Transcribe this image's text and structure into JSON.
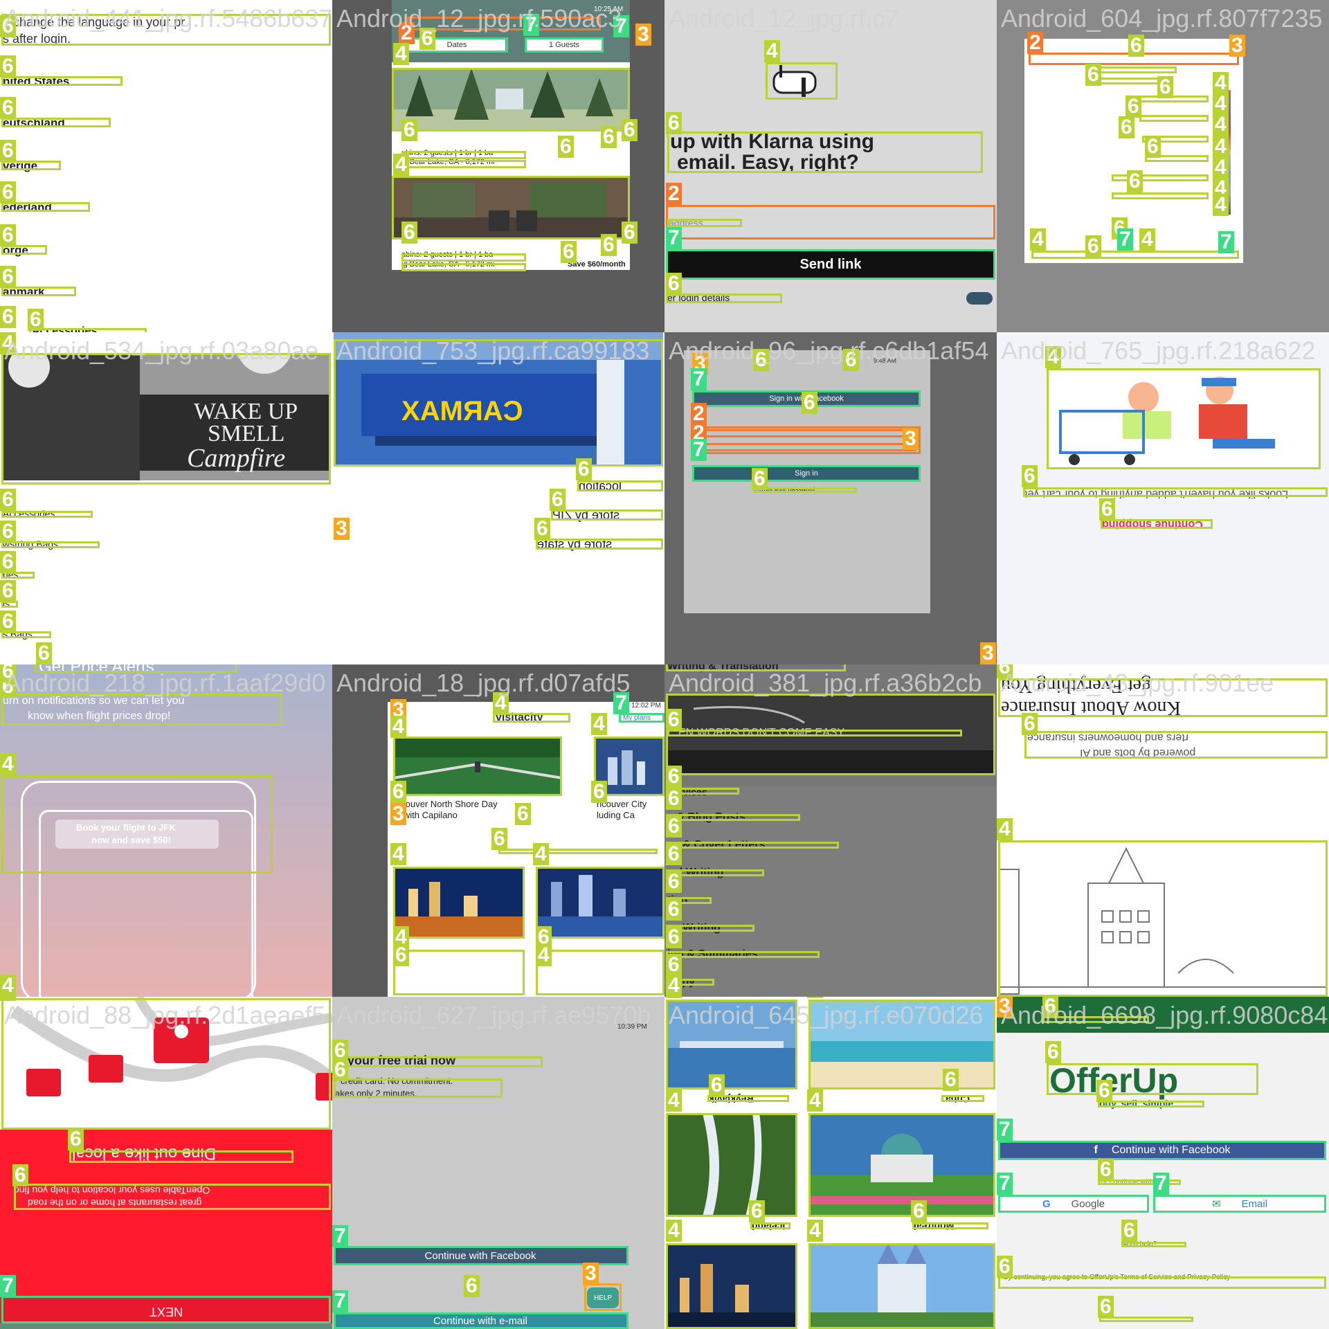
{
  "tiles": [
    {
      "title": "Android_441_jpg.rf.5486b6375",
      "header_text": "n change the language in your pr",
      "sub_text": "s after login.",
      "countries": [
        "nited States",
        "eutschland",
        "verige",
        "ederland",
        "orge",
        "anmark"
      ],
      "footer_item": "Accessories",
      "numbers": [
        "6",
        "6",
        "6",
        "6",
        "6",
        "6",
        "6",
        "6",
        "6",
        "4"
      ]
    },
    {
      "title": "Android_12_jpg.rf.590ac3",
      "status_time": "10:25 AM",
      "dates_label": "Dates",
      "guests_label": "1 Guests",
      "listing1_line1": "abins: 2 guests | 1 br | 1 ba",
      "listing1_line2": "ig Bear Lake, CA - 6,172 mi",
      "listing2_line1": "abins: 2 guests | 1 br | 1 ba",
      "listing2_line2": "ig Bear Lake, CA - 6,172 mi",
      "price_label": "Save $60/month",
      "numbers": [
        "2",
        "6",
        "7",
        "7",
        "3",
        "4",
        "6",
        "6",
        "6",
        "6",
        "4",
        "6",
        "6",
        "6",
        "6"
      ]
    },
    {
      "title": "Android_12_jpg.rf.c7",
      "heading_line1": "up with Klarna using",
      "heading_line2": "email. Easy, right?",
      "field_label": "address",
      "send_button": "Send link",
      "footer_text": "er login details",
      "numbers": [
        "4",
        "6",
        "2",
        "7",
        "6"
      ]
    },
    {
      "title": "Android_604_jpg.rf.807f7235",
      "numbers": [
        "2",
        "6",
        "3",
        "6",
        "6",
        "4",
        "4",
        "6",
        "4",
        "6",
        "4",
        "6",
        "4",
        "4",
        "6",
        "4",
        "6",
        "6",
        "4",
        "4",
        "7",
        "7"
      ]
    },
    {
      "title": "Android_534_jpg.rf.03a80ae",
      "bag_text_line1": "WAKE UP",
      "bag_text_line2": "SMELL",
      "bag_text_line3": "Campfire",
      "list_items": [
        "Accessories",
        "wstring Bags",
        "ries",
        "ls",
        "s Bags"
      ],
      "numbers": [
        "4",
        "6",
        "6",
        "6",
        "6",
        "6",
        "6"
      ]
    },
    {
      "title": "Android_753_jpg.rf.ca99183",
      "sign_text": "CARMAX",
      "links": [
        "location",
        "store by ZIP",
        "store by state"
      ],
      "numbers": [
        "4",
        "6",
        "6",
        "6",
        "3"
      ]
    },
    {
      "title": "Android_96_jpg.rf.c6db1af54",
      "status_time": "9:48 AM",
      "facebook_button": "Sign in with Facebook",
      "sign_in_button": "Sign in",
      "forgot_text": "Forgot your password",
      "numbers": [
        "3",
        "6",
        "6",
        "7",
        "6",
        "2",
        "2",
        "3",
        "7",
        "6",
        "3"
      ]
    },
    {
      "title": "Android_765_jpg.rf.218a622",
      "message_text": "Looks like you haven't added anything to your cart yet",
      "continue_text": "Continue shopping",
      "numbers": [
        "4",
        "6",
        "6"
      ]
    },
    {
      "title": "Android_218_jpg.rf.1aaf29d0",
      "top_label": "Get Price Alerts",
      "notif_line1": "urn on notifications so we can let you",
      "notif_line2": "know when flight prices drop!",
      "phone_text_line1": "Book your flight to JFK",
      "phone_text_line2": "now and save $50!",
      "numbers": [
        "6",
        "6",
        "4",
        "4"
      ]
    },
    {
      "title": "Android_18_jpg.rf.d07afd5",
      "status_time": "12:02 PM",
      "brand": "visitacity",
      "my_plans": "My plans",
      "card1_line1": "ncouver North Shore Day",
      "card1_line2": "o with Capilano",
      "card2_line1": "ncouver City",
      "card2_line2": "luding Ca",
      "numbers": [
        "3",
        "4",
        "7",
        "4",
        "4",
        "6",
        "6",
        "6",
        "3",
        "6",
        "4",
        "4",
        "4",
        "6",
        "6",
        "4",
        "4"
      ]
    },
    {
      "title": "Android_381_jpg.rf.a36b2cb",
      "top_item": "Writing & Translation",
      "banner_text": "EN WORDS DON'T COME EASY",
      "list_items": [
        "Services",
        "s & Blog Posts",
        "es & Cover Letters",
        "cal Writing",
        "tion",
        "ve Writing",
        "ion & Summaries",
        "Copy"
      ],
      "numbers": [
        "6",
        "6",
        "6",
        "6",
        "6",
        "6",
        "6",
        "6",
        "6",
        "6",
        "4",
        "3"
      ]
    },
    {
      "title": "Android_43_jpg.rf.901ee",
      "heading_line1": "get Everything You",
      "heading_line2": "Know About Insurance",
      "sub_line1": "rters and homeowners insurance",
      "sub_line2": "powered by bots and AI",
      "numbers": [
        "6",
        "6",
        "4"
      ]
    },
    {
      "title": "Android_88_jpg.rf.2d1aeaef5",
      "red_heading": "Dine out like a local",
      "red_text_line1": "OpenTable uses your location to help you find",
      "red_text_line2": "great restaurants at home or on the road",
      "next_button": "NEXT",
      "numbers": [
        "4",
        "6",
        "6",
        "7"
      ]
    },
    {
      "title": "Android_627_jpg.rf.ae9570b",
      "status_time": "10:39 PM",
      "heading": "rt your free trial now",
      "sub_line1": "credit card. No commitment.",
      "sub_line2": "akes only 2 minutes.",
      "facebook_button": "Continue with Facebook",
      "email_button": "Continue with e-mail",
      "help_button": "HELP",
      "numbers": [
        "6",
        "6",
        "7",
        "6",
        "3",
        "7"
      ]
    },
    {
      "title": "Android_645_jpg.rf.e070d26",
      "city_labels": [
        "Reykjavik",
        "Cuba",
        "Iceland",
        "Montreal"
      ],
      "numbers": [
        "4",
        "4",
        "6",
        "6",
        "4",
        "4",
        "6",
        "6",
        "4",
        "4"
      ]
    },
    {
      "title": "Android_6698_jpg.rf.9080c84",
      "brand": "OfferUp",
      "tagline": "buy. sell. simple",
      "facebook_button": "Continue with Facebook",
      "google_button": "Google",
      "email_button": "Email",
      "or_text": "or continue with",
      "help_text": "Need help?",
      "terms_text": "By continuing, you agree to OfferUp's Terms of Service and Privacy Policy",
      "numbers": [
        "3",
        "6",
        "6",
        "6",
        "7",
        "6",
        "7",
        "7",
        "6",
        "6",
        "6"
      ]
    }
  ],
  "colors": {
    "label_6": "#b9d334",
    "label_2": "#f07a30",
    "label_3": "#f5a623",
    "label_7": "#3ddc84",
    "facebook": "#3b5998",
    "red": "#ff1a2e",
    "offerup_green": "#1e6e3a",
    "dark_gray": "#555555"
  }
}
